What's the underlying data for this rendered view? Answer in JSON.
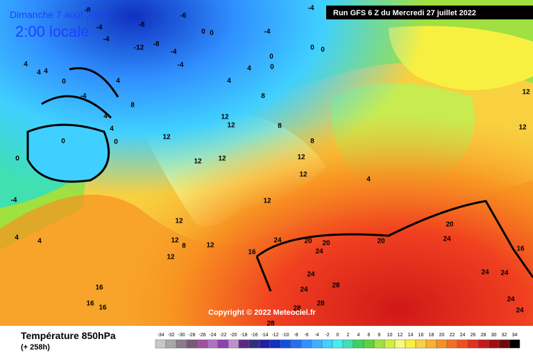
{
  "header": {
    "date": "Dimanche 7 août 2022",
    "time": "2:00 locale",
    "run": "Run GFS 6 Z du Mercredi 27 juillet 2022"
  },
  "copyright": "Copyright © 2022 Meteociel.fr",
  "footer": {
    "title": "Température 850hPa",
    "lead": "(+ 258h)"
  },
  "legend": {
    "values": [
      -34,
      -32,
      -30,
      -28,
      -26,
      -24,
      -22,
      -20,
      -18,
      -16,
      -14,
      -12,
      -10,
      -8,
      -6,
      -4,
      -2,
      0,
      2,
      4,
      6,
      8,
      10,
      12,
      14,
      16,
      18,
      20,
      22,
      24,
      26,
      28,
      30,
      32,
      34
    ],
    "colors": [
      "#c8c8c8",
      "#a8a8a8",
      "#8c7c8c",
      "#7a5a7a",
      "#a050a0",
      "#b070c0",
      "#9040b0",
      "#c090d0",
      "#5a2a80",
      "#303080",
      "#2020a0",
      "#1030c0",
      "#1050e0",
      "#2070f0",
      "#3090ff",
      "#40b0ff",
      "#40d0ff",
      "#40f0f0",
      "#40e0b0",
      "#40d060",
      "#60d040",
      "#a0e040",
      "#d0f040",
      "#f8f880",
      "#f8f040",
      "#f8d040",
      "#f8b030",
      "#f89020",
      "#f07020",
      "#f05020",
      "#e03020",
      "#c81818",
      "#a01010",
      "#700808",
      "#000000"
    ]
  },
  "map": {
    "labels": [
      -8,
      -6,
      -4,
      -8,
      -4,
      -4,
      -12,
      -8,
      -4,
      0,
      0,
      -4,
      0,
      0,
      0,
      0,
      4,
      -4,
      4,
      4,
      4,
      0,
      -4,
      4,
      4,
      8,
      8,
      4,
      4,
      0,
      0,
      0,
      12,
      12,
      12,
      8,
      12,
      12,
      12,
      12,
      8,
      4,
      12,
      -4,
      4,
      4,
      12,
      12,
      8,
      12,
      12,
      16,
      24,
      20,
      20,
      24,
      20,
      20,
      24,
      24,
      28,
      24,
      28,
      28,
      28,
      16,
      16,
      16,
      12,
      12,
      16,
      24,
      24,
      24,
      24
    ]
  }
}
